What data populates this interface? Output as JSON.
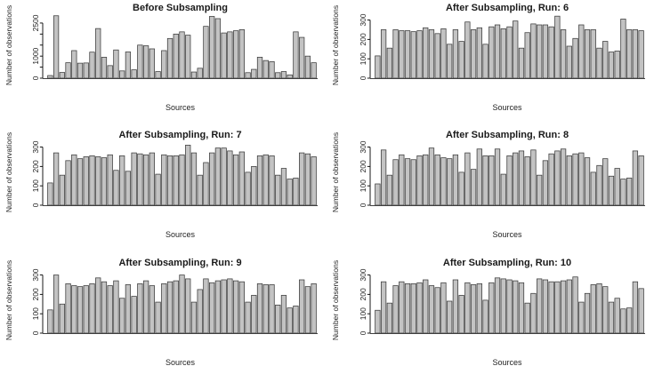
{
  "figure": {
    "background": "#ffffff",
    "bar_fill": "#c3c3c3",
    "bar_stroke": "#3a3a3a",
    "axis_color": "#000000",
    "text_color": "#1a1a1a"
  },
  "chart_data": [
    {
      "type": "bar",
      "title": "Before Subsampling",
      "xlabel": "Sources",
      "ylabel": "Number of observations",
      "legend": "none",
      "grid": "off",
      "ylim": [
        0,
        2900
      ],
      "yticks": [
        0,
        500,
        1000,
        1500,
        2000,
        2500
      ],
      "ytick_labels": [
        "0",
        "",
        "1000",
        "",
        "",
        "2500"
      ],
      "values": [
        120,
        2830,
        260,
        700,
        1250,
        680,
        690,
        1180,
        2250,
        950,
        570,
        1280,
        330,
        1190,
        380,
        1500,
        1470,
        1330,
        300,
        1250,
        1800,
        2000,
        2100,
        1950,
        280,
        450,
        2350,
        2800,
        2700,
        2050,
        2100,
        2150,
        2200,
        250,
        400,
        950,
        800,
        750,
        250,
        300,
        150,
        2100,
        1850,
        1000,
        700
      ]
    },
    {
      "type": "bar",
      "title": "After Subsampling, Run: 6",
      "xlabel": "Sources",
      "ylabel": "Number of observations",
      "legend": "none",
      "grid": "off",
      "ylim": [
        0,
        330
      ],
      "yticks": [
        0,
        100,
        200,
        300
      ],
      "ytick_labels": [
        "0",
        "100",
        "200",
        "300"
      ],
      "values": [
        115,
        250,
        155,
        250,
        245,
        245,
        240,
        245,
        260,
        250,
        230,
        255,
        175,
        250,
        190,
        290,
        250,
        260,
        175,
        265,
        275,
        255,
        265,
        295,
        155,
        235,
        280,
        275,
        275,
        265,
        320,
        250,
        165,
        205,
        275,
        250,
        250,
        155,
        190,
        135,
        140,
        305,
        250,
        250,
        245
      ]
    },
    {
      "type": "bar",
      "title": "After Subsampling, Run: 7",
      "xlabel": "Sources",
      "ylabel": "Number of observations",
      "legend": "none",
      "grid": "off",
      "ylim": [
        0,
        330
      ],
      "yticks": [
        0,
        100,
        200,
        300
      ],
      "ytick_labels": [
        "0",
        "100",
        "200",
        "300"
      ],
      "values": [
        115,
        270,
        155,
        230,
        260,
        240,
        250,
        255,
        250,
        245,
        260,
        180,
        255,
        175,
        270,
        265,
        260,
        270,
        160,
        260,
        255,
        255,
        260,
        310,
        270,
        155,
        220,
        270,
        295,
        295,
        280,
        260,
        275,
        170,
        200,
        255,
        260,
        255,
        155,
        190,
        135,
        140,
        270,
        265,
        250
      ]
    },
    {
      "type": "bar",
      "title": "After Subsampling, Run: 8",
      "xlabel": "Sources",
      "ylabel": "Number of observations",
      "legend": "none",
      "grid": "off",
      "ylim": [
        0,
        330
      ],
      "yticks": [
        0,
        100,
        200,
        300
      ],
      "ytick_labels": [
        "0",
        "100",
        "200",
        "300"
      ],
      "values": [
        110,
        285,
        155,
        235,
        260,
        240,
        235,
        255,
        260,
        295,
        260,
        245,
        240,
        260,
        170,
        270,
        185,
        290,
        255,
        255,
        290,
        160,
        255,
        270,
        280,
        250,
        285,
        155,
        230,
        265,
        280,
        290,
        255,
        265,
        270,
        245,
        170,
        205,
        240,
        150,
        190,
        135,
        140,
        280,
        255
      ]
    },
    {
      "type": "bar",
      "title": "After Subsampling, Run: 9",
      "xlabel": "Sources",
      "ylabel": "Number of observations",
      "legend": "none",
      "grid": "off",
      "ylim": [
        0,
        330
      ],
      "yticks": [
        0,
        100,
        200,
        300
      ],
      "ytick_labels": [
        "0",
        "100",
        "200",
        "300"
      ],
      "values": [
        120,
        300,
        150,
        255,
        245,
        240,
        245,
        255,
        285,
        265,
        245,
        270,
        180,
        250,
        190,
        255,
        270,
        245,
        160,
        255,
        265,
        270,
        300,
        280,
        160,
        225,
        280,
        260,
        270,
        275,
        280,
        270,
        265,
        160,
        195,
        255,
        250,
        250,
        145,
        195,
        130,
        140,
        275,
        240,
        255
      ]
    },
    {
      "type": "bar",
      "title": "After Subsampling, Run: 10",
      "xlabel": "Sources",
      "ylabel": "Number of observations",
      "legend": "none",
      "grid": "off",
      "ylim": [
        0,
        330
      ],
      "yticks": [
        0,
        100,
        200,
        300
      ],
      "ytick_labels": [
        "0",
        "100",
        "200",
        "300"
      ],
      "values": [
        118,
        265,
        155,
        245,
        265,
        255,
        255,
        260,
        275,
        245,
        235,
        260,
        165,
        275,
        195,
        260,
        250,
        255,
        170,
        260,
        285,
        280,
        275,
        270,
        260,
        155,
        205,
        280,
        275,
        265,
        265,
        270,
        275,
        290,
        160,
        205,
        250,
        255,
        240,
        160,
        180,
        125,
        130,
        265,
        230
      ]
    }
  ]
}
